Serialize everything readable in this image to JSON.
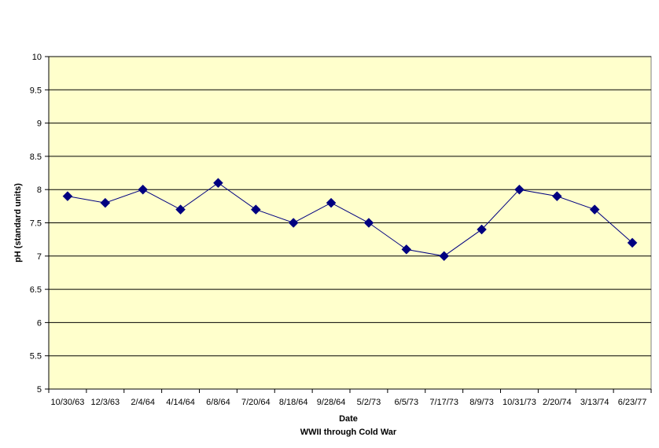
{
  "chart_data": {
    "type": "line",
    "title": "",
    "xlabel": "Date",
    "xlabel_sub": "WWII through Cold War",
    "ylabel": "pH (standard units)",
    "ylim": [
      5,
      10
    ],
    "yticks": [
      "5",
      "5.5",
      "6",
      "6.5",
      "7",
      "7.5",
      "8",
      "8.5",
      "9",
      "9.5",
      "10"
    ],
    "grid": true,
    "legend": "none",
    "colors": {
      "plot_bg": "#FFFFCC",
      "grid": "#000000",
      "line": "#000080",
      "marker": "#000080"
    },
    "categories": [
      "10/30/63",
      "12/3/63",
      "2/4/64",
      "4/14/64",
      "6/8/64",
      "7/20/64",
      "8/18/64",
      "9/28/64",
      "5/2/73",
      "6/5/73",
      "7/17/73",
      "8/9/73",
      "10/31/73",
      "2/20/74",
      "3/13/74",
      "6/23/77"
    ],
    "series": [
      {
        "values": [
          7.9,
          7.8,
          8.0,
          7.7,
          8.1,
          7.7,
          7.5,
          7.8,
          7.5,
          7.1,
          7.0,
          7.4,
          8.0,
          7.9,
          7.7,
          7.2
        ]
      }
    ]
  }
}
